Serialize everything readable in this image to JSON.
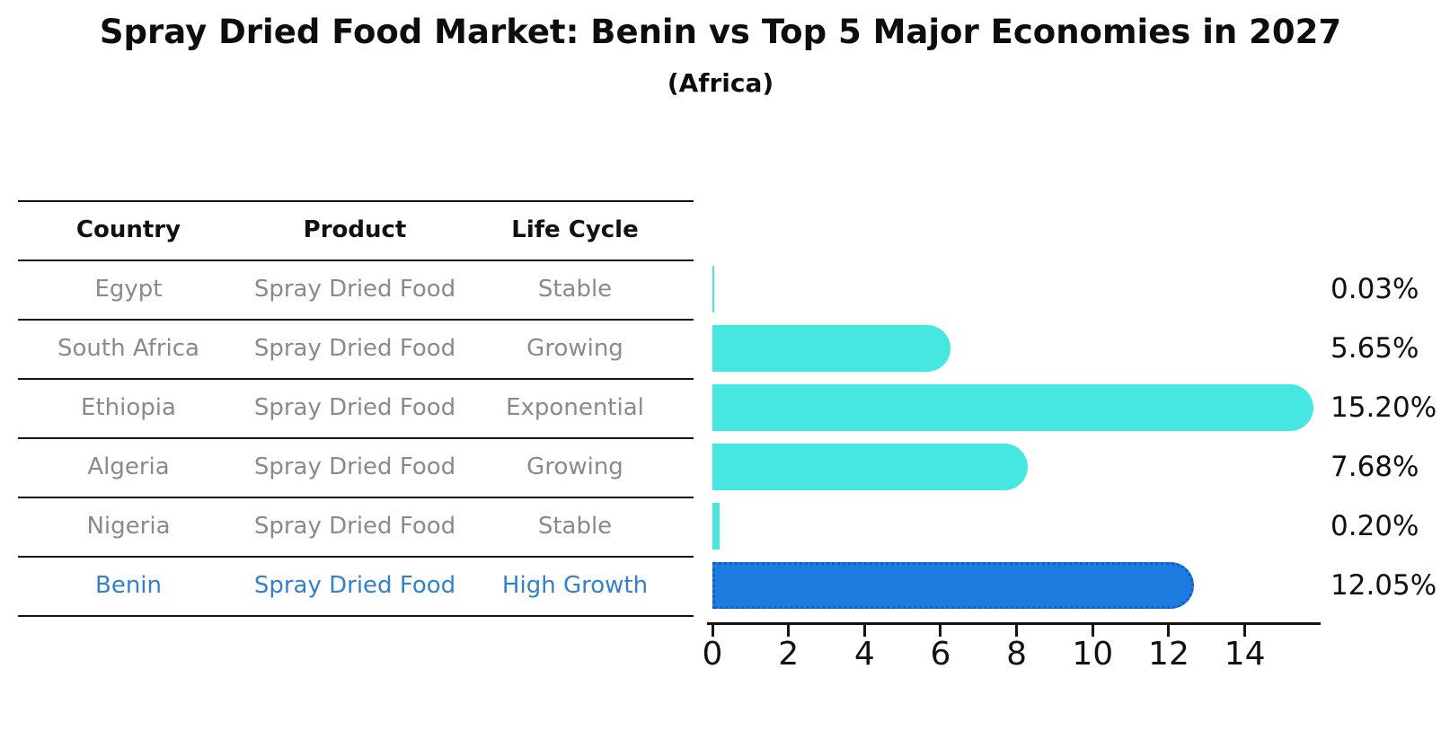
{
  "page": {
    "title": "Spray Dried Food Market: Benin vs Top 5 Major Economies in 2027",
    "subtitle": "(Africa)"
  },
  "table": {
    "headers": [
      "Country",
      "Product",
      "Life Cycle"
    ],
    "rows": [
      {
        "country": "Egypt",
        "product": "Spray Dried Food",
        "life_cycle": "Stable",
        "highlighted": false
      },
      {
        "country": "South Africa",
        "product": "Spray Dried Food",
        "life_cycle": "Growing",
        "highlighted": false
      },
      {
        "country": "Ethiopia",
        "product": "Spray Dried Food",
        "life_cycle": "Exponential",
        "highlighted": false
      },
      {
        "country": "Algeria",
        "product": "Spray Dried Food",
        "life_cycle": "Growing",
        "highlighted": false
      },
      {
        "country": "Nigeria",
        "product": "Spray Dried Food",
        "life_cycle": "Stable",
        "highlighted": false
      },
      {
        "country": "Benin",
        "product": "Spray Dried Food",
        "life_cycle": "High Growth",
        "highlighted": true
      }
    ]
  },
  "chart_data": {
    "type": "bar",
    "orientation": "horizontal",
    "title": "Spray Dried Food Market: Benin vs Top 5 Major Economies in 2027",
    "subtitle": "(Africa)",
    "categories": [
      "Egypt",
      "South Africa",
      "Ethiopia",
      "Algeria",
      "Nigeria",
      "Benin"
    ],
    "values": [
      0.03,
      5.65,
      15.2,
      7.68,
      0.2,
      12.05
    ],
    "value_labels": [
      "0.03%",
      "5.65%",
      "15.20%",
      "7.68%",
      "0.20%",
      "12.05%"
    ],
    "x_ticks": [
      0,
      2,
      4,
      6,
      8,
      10,
      12,
      14
    ],
    "xlim": [
      0,
      16
    ],
    "grid": false,
    "legend": false,
    "highlight_index": 5,
    "colors": {
      "bar_default": "#46e6e1",
      "bar_highlight": "#1e7be0",
      "bar_highlight_border": "#0f60c4",
      "highlight_text": "#3381c9",
      "row_text": "#8a8a8a",
      "heading_text": "#111111",
      "axis": "#141414"
    }
  }
}
